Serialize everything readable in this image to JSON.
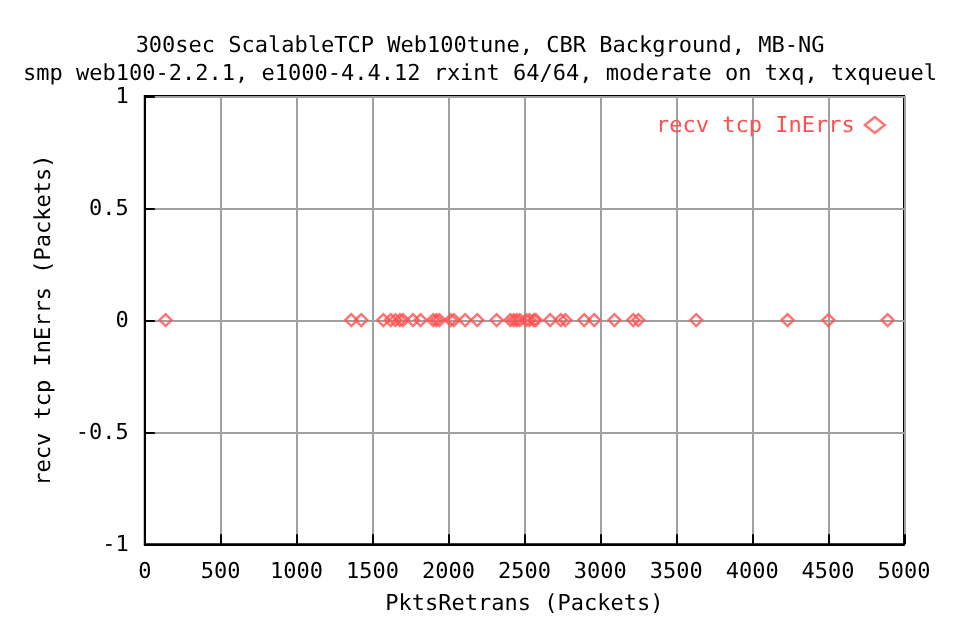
{
  "chart_data": {
    "type": "scatter",
    "title": "300sec ScalableTCP Web100tune, CBR Background, MB-NG",
    "subtitle": "smp web100-2.2.1, e1000-4.4.12 rxint 64/64, moderate on txq, txqueuel",
    "xlabel": "PktsRetrans (Packets)",
    "ylabel": "recv tcp InErrs (Packets)",
    "x": [
      137,
      1360,
      1426,
      1571,
      1620,
      1650,
      1680,
      1700,
      1766,
      1816,
      1899,
      1920,
      1940,
      2015,
      2036,
      2110,
      2189,
      2317,
      2408,
      2430,
      2450,
      2470,
      2512,
      2533,
      2562,
      2575,
      2670,
      2740,
      2770,
      2894,
      2960,
      3093,
      3217,
      3250,
      3632,
      4233,
      4502,
      4892
    ],
    "series": [
      {
        "name": "recv tcp InErrs",
        "color": "#ff5050",
        "values": [
          0,
          0,
          0,
          0,
          0,
          0,
          0,
          0,
          0,
          0,
          0,
          0,
          0,
          0,
          0,
          0,
          0,
          0,
          0,
          0,
          0,
          0,
          0,
          0,
          0,
          0,
          0,
          0,
          0,
          0,
          0,
          0,
          0,
          0,
          0,
          0,
          0,
          0
        ]
      }
    ],
    "xlim": [
      0,
      5000
    ],
    "xticks": [
      0,
      500,
      1000,
      1500,
      2000,
      2500,
      3000,
      3500,
      4000,
      4500,
      5000
    ],
    "ylim": [
      -1,
      1
    ],
    "yticks": [
      -1,
      -0.5,
      0,
      0.5,
      1
    ],
    "grid": true,
    "legend": "top right",
    "marker": "diamond"
  }
}
